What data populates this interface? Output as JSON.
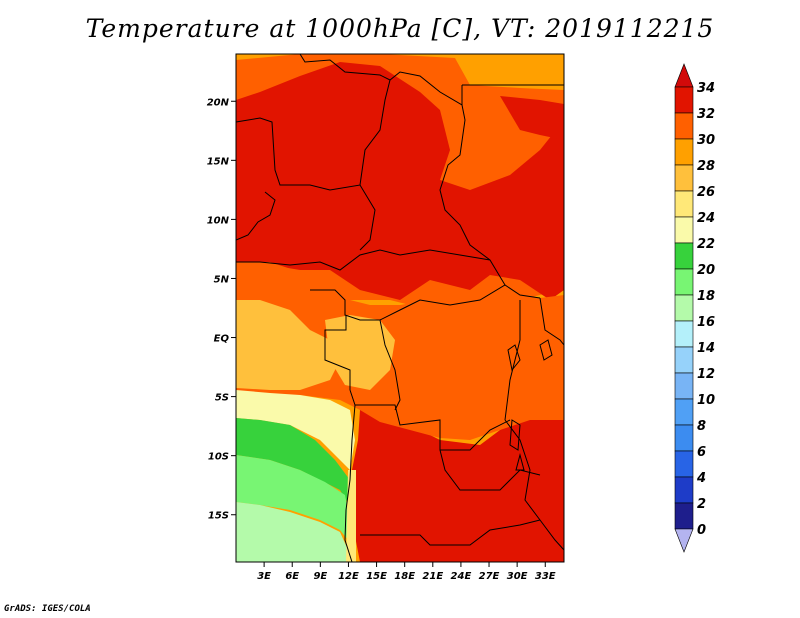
{
  "title": "Temperature at 1000hPa [C], VT: 2019112215",
  "footer": "GrADS: IGES/COLA",
  "map": {
    "lon_range": [
      0,
      35
    ],
    "lat_range": [
      -19,
      24
    ],
    "x_ticks": [
      {
        "value": 3,
        "label": "3E"
      },
      {
        "value": 6,
        "label": "6E"
      },
      {
        "value": 9,
        "label": "9E"
      },
      {
        "value": 12,
        "label": "12E"
      },
      {
        "value": 15,
        "label": "15E"
      },
      {
        "value": 18,
        "label": "18E"
      },
      {
        "value": 21,
        "label": "21E"
      },
      {
        "value": 24,
        "label": "24E"
      },
      {
        "value": 27,
        "label": "27E"
      },
      {
        "value": 30,
        "label": "30E"
      },
      {
        "value": 33,
        "label": "33E"
      }
    ],
    "y_ticks": [
      {
        "value": 20,
        "label": "20N"
      },
      {
        "value": 15,
        "label": "15N"
      },
      {
        "value": 10,
        "label": "10N"
      },
      {
        "value": 5,
        "label": "5N"
      },
      {
        "value": 0,
        "label": "EQ"
      },
      {
        "value": -5,
        "label": "5S"
      },
      {
        "value": -10,
        "label": "10S"
      },
      {
        "value": -15,
        "label": "15S"
      }
    ]
  },
  "colorbar": {
    "levels": [
      "0",
      "2",
      "4",
      "6",
      "8",
      "10",
      "12",
      "14",
      "16",
      "18",
      "20",
      "22",
      "24",
      "26",
      "28",
      "30",
      "32",
      "34"
    ],
    "colors": [
      "#b4b4f0",
      "#1e1e8c",
      "#1e3cc8",
      "#2864e6",
      "#3c8cf0",
      "#50a0f5",
      "#78b4f5",
      "#96d2fa",
      "#b4f0fa",
      "#b4faaa",
      "#78f573",
      "#37d23c",
      "#fafaaa",
      "#ffe878",
      "#ffc03c",
      "#ffa000",
      "#ff6000",
      "#e11400",
      "#d20a0a"
    ]
  }
}
